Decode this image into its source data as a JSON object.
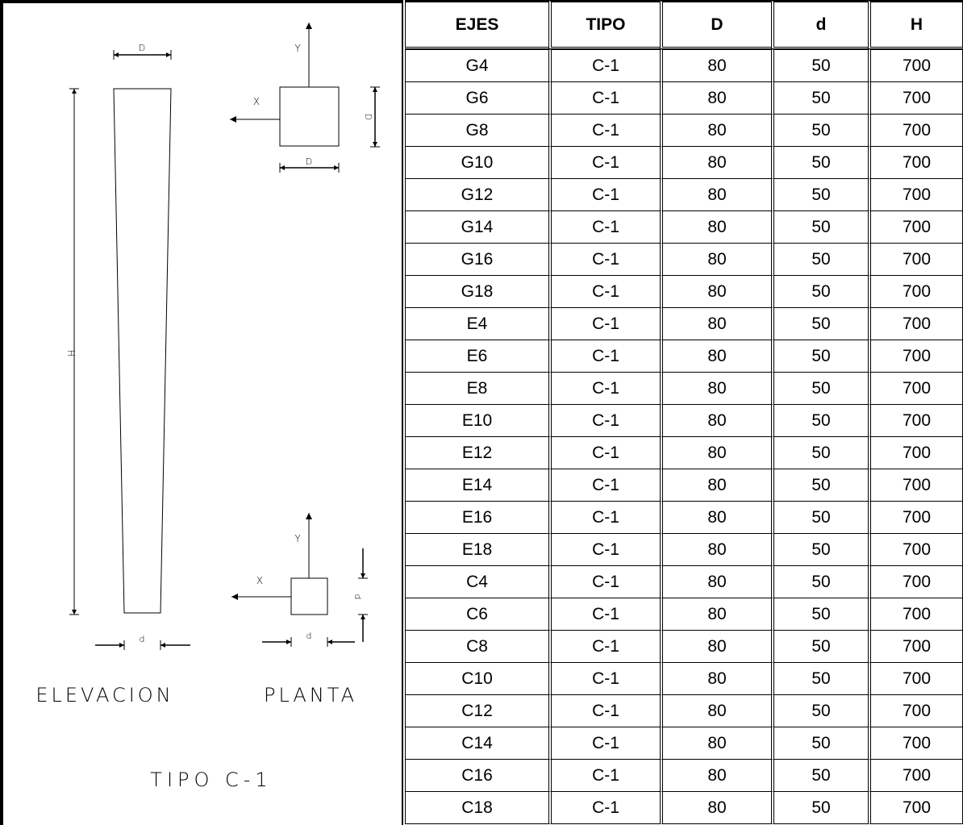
{
  "drawing": {
    "elevation_title": "ELEVACION",
    "plan_title": "PLANTA",
    "type_title": "TIPO C-1",
    "dim_D": "D",
    "dim_d": "d",
    "dim_H": "H",
    "axis_x": "X",
    "axis_y": "Y"
  },
  "table": {
    "headers": [
      "EJES",
      "TIPO",
      "D",
      "d",
      "H"
    ],
    "rows": [
      [
        "G4",
        "C-1",
        "80",
        "50",
        "700"
      ],
      [
        "G6",
        "C-1",
        "80",
        "50",
        "700"
      ],
      [
        "G8",
        "C-1",
        "80",
        "50",
        "700"
      ],
      [
        "G10",
        "C-1",
        "80",
        "50",
        "700"
      ],
      [
        "G12",
        "C-1",
        "80",
        "50",
        "700"
      ],
      [
        "G14",
        "C-1",
        "80",
        "50",
        "700"
      ],
      [
        "G16",
        "C-1",
        "80",
        "50",
        "700"
      ],
      [
        "G18",
        "C-1",
        "80",
        "50",
        "700"
      ],
      [
        "E4",
        "C-1",
        "80",
        "50",
        "700"
      ],
      [
        "E6",
        "C-1",
        "80",
        "50",
        "700"
      ],
      [
        "E8",
        "C-1",
        "80",
        "50",
        "700"
      ],
      [
        "E10",
        "C-1",
        "80",
        "50",
        "700"
      ],
      [
        "E12",
        "C-1",
        "80",
        "50",
        "700"
      ],
      [
        "E14",
        "C-1",
        "80",
        "50",
        "700"
      ],
      [
        "E16",
        "C-1",
        "80",
        "50",
        "700"
      ],
      [
        "E18",
        "C-1",
        "80",
        "50",
        "700"
      ],
      [
        "C4",
        "C-1",
        "80",
        "50",
        "700"
      ],
      [
        "C6",
        "C-1",
        "80",
        "50",
        "700"
      ],
      [
        "C8",
        "C-1",
        "80",
        "50",
        "700"
      ],
      [
        "C10",
        "C-1",
        "80",
        "50",
        "700"
      ],
      [
        "C12",
        "C-1",
        "80",
        "50",
        "700"
      ],
      [
        "C14",
        "C-1",
        "80",
        "50",
        "700"
      ],
      [
        "C16",
        "C-1",
        "80",
        "50",
        "700"
      ],
      [
        "C18",
        "C-1",
        "80",
        "50",
        "700"
      ]
    ]
  }
}
